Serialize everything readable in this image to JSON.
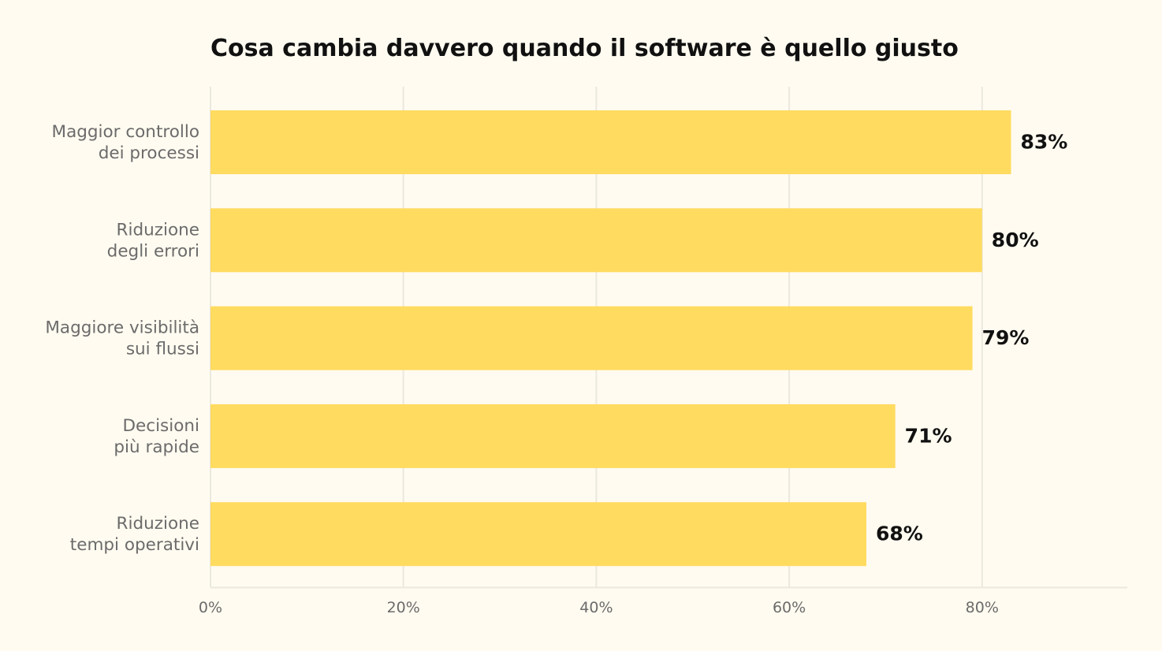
{
  "colors": {
    "background": "#fffbf0",
    "bar": "#ffdb60",
    "grid": "#ebe8df",
    "title": "#111111",
    "label": "#6b6b6b"
  },
  "chart_data": {
    "type": "bar",
    "orientation": "horizontal",
    "title": "Cosa cambia davvero quando il software è quello giusto",
    "xlabel": "",
    "ylabel": "",
    "categories": [
      [
        "Maggior controllo",
        "dei processi"
      ],
      [
        "Riduzione",
        "degli errori"
      ],
      [
        "Maggiore visibilità",
        "sui flussi"
      ],
      [
        "Decisioni",
        "più rapide"
      ],
      [
        "Riduzione",
        "tempi operativi"
      ]
    ],
    "values": [
      83,
      80,
      79,
      71,
      68
    ],
    "value_labels": [
      "83%",
      "80%",
      "79%",
      "71%",
      "68%"
    ],
    "xlim": [
      0,
      95
    ],
    "xticks": [
      0,
      20,
      40,
      60,
      80
    ],
    "xtick_labels": [
      "0%",
      "20%",
      "40%",
      "60%",
      "80%"
    ],
    "grid": true,
    "legend": "none"
  }
}
